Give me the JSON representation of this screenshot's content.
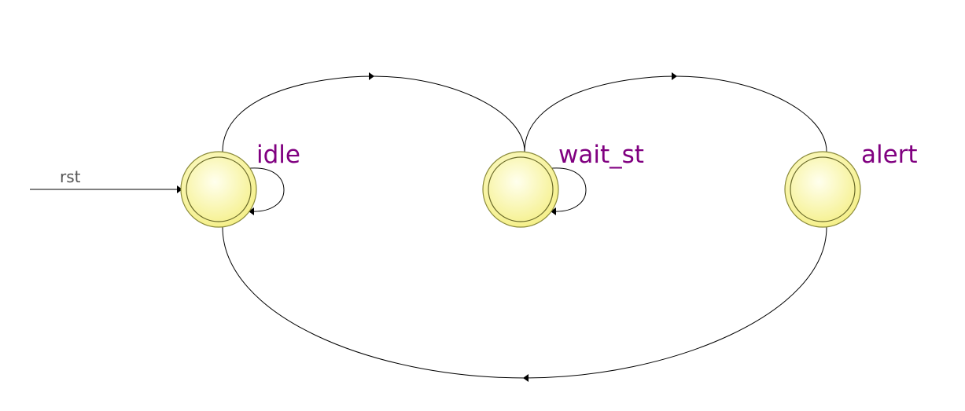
{
  "diagram": {
    "type": "state-machine",
    "reset": {
      "label": "rst",
      "target": "idle"
    },
    "states": [
      {
        "id": "idle",
        "label": "idle"
      },
      {
        "id": "wait_st",
        "label": "wait_st"
      },
      {
        "id": "alert",
        "label": "alert"
      }
    ],
    "transitions": [
      {
        "from": "idle",
        "to": "wait_st"
      },
      {
        "from": "wait_st",
        "to": "alert"
      },
      {
        "from": "alert",
        "to": "idle"
      },
      {
        "from": "idle",
        "to": "idle"
      },
      {
        "from": "wait_st",
        "to": "wait_st"
      }
    ],
    "colors": {
      "state_fill_center": "#ffffee",
      "state_fill_edge": "#f5f08a",
      "label": "#800080",
      "edge": "#000000",
      "reset_label": "#555555"
    }
  }
}
